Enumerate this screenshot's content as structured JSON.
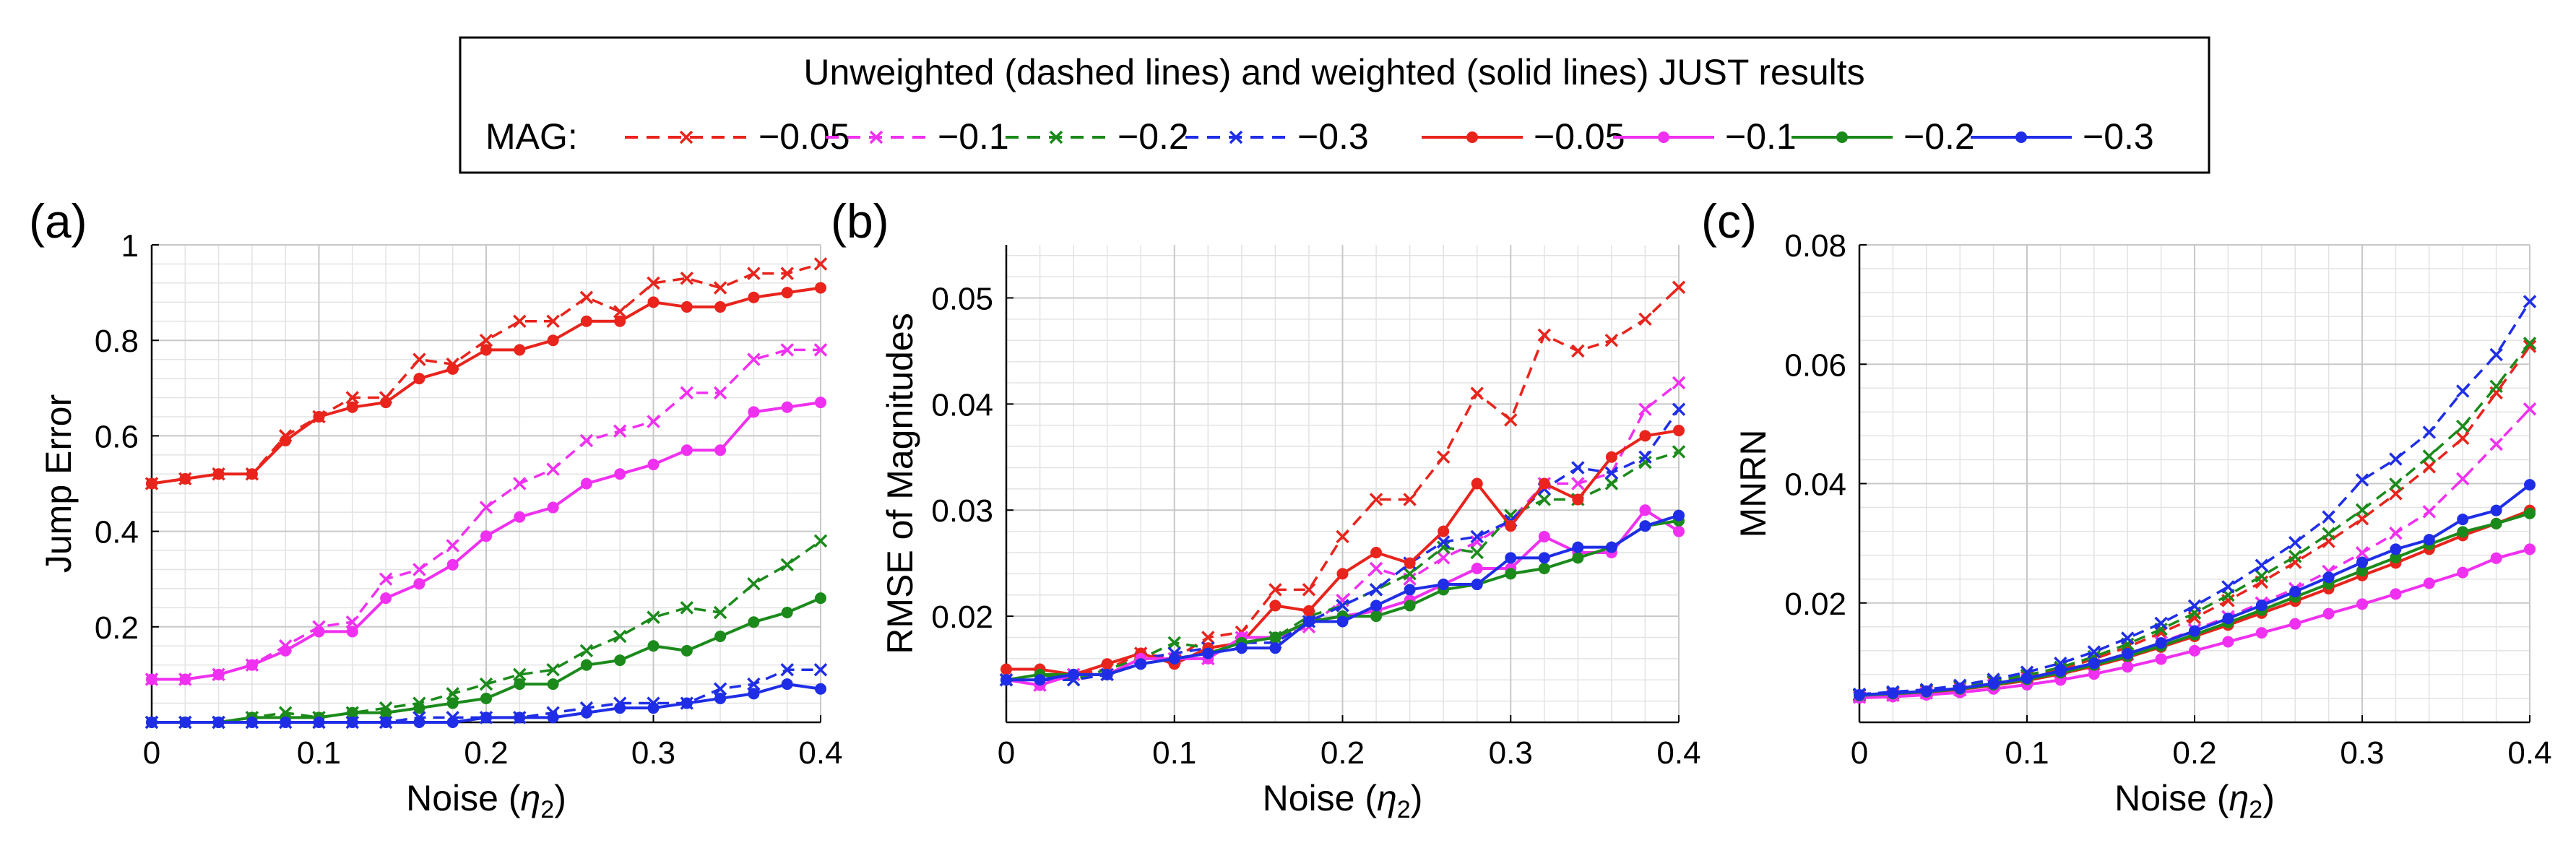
{
  "legend": {
    "title": "Unweighted (dashed lines) and weighted (solid lines) JUST results",
    "group_label": "MAG:",
    "entries": [
      {
        "label": "−0.05",
        "color": "#e8241c",
        "style": "dashed",
        "marker": "x"
      },
      {
        "label": "−0.1",
        "color": "#f030f0",
        "style": "dashed",
        "marker": "x"
      },
      {
        "label": "−0.2",
        "color": "#1b8a1b",
        "style": "dashed",
        "marker": "x"
      },
      {
        "label": "−0.3",
        "color": "#1f2ee6",
        "style": "dashed",
        "marker": "x"
      },
      {
        "label": "−0.05",
        "color": "#e8241c",
        "style": "solid",
        "marker": "o"
      },
      {
        "label": "−0.1",
        "color": "#f030f0",
        "style": "solid",
        "marker": "o"
      },
      {
        "label": "−0.2",
        "color": "#1b8a1b",
        "style": "solid",
        "marker": "o"
      },
      {
        "label": "−0.3",
        "color": "#1f2ee6",
        "style": "solid",
        "marker": "o"
      }
    ]
  },
  "chart_data": [
    {
      "panel": "(a)",
      "type": "line",
      "xlabel_pre": "Noise (",
      "xlabel_sym": "η",
      "xlabel_sub": "2",
      "xlabel_post": ")",
      "ylabel": "Jump Error",
      "xlim": [
        0,
        0.4
      ],
      "ylim": [
        0,
        1
      ],
      "xticks": [
        0,
        0.1,
        0.2,
        0.3,
        0.4
      ],
      "xtick_labels": [
        "0",
        "0.1",
        "0.2",
        "0.3",
        "0.4"
      ],
      "yticks": [
        0.2,
        0.4,
        0.6,
        0.8,
        1
      ],
      "ytick_labels": [
        "0.2",
        "0.4",
        "0.6",
        "0.8",
        "1"
      ],
      "grid": true,
      "x": [
        0,
        0.02,
        0.04,
        0.06,
        0.08,
        0.1,
        0.12,
        0.14,
        0.16,
        0.18,
        0.2,
        0.22,
        0.24,
        0.26,
        0.28,
        0.3,
        0.32,
        0.34,
        0.36,
        0.38,
        0.4
      ],
      "series": [
        {
          "mag": "-0.05",
          "weighted": false,
          "values": [
            0.5,
            0.51,
            0.52,
            0.52,
            0.6,
            0.64,
            0.68,
            0.68,
            0.76,
            0.75,
            0.8,
            0.84,
            0.84,
            0.89,
            0.86,
            0.92,
            0.93,
            0.91,
            0.94,
            0.94,
            0.96
          ]
        },
        {
          "mag": "-0.1",
          "weighted": false,
          "values": [
            0.09,
            0.09,
            0.1,
            0.12,
            0.16,
            0.2,
            0.21,
            0.3,
            0.32,
            0.37,
            0.45,
            0.5,
            0.53,
            0.59,
            0.61,
            0.63,
            0.69,
            0.69,
            0.76,
            0.78,
            0.78
          ]
        },
        {
          "mag": "-0.2",
          "weighted": false,
          "values": [
            0.0,
            0.0,
            0.0,
            0.01,
            0.02,
            0.01,
            0.02,
            0.03,
            0.04,
            0.06,
            0.08,
            0.1,
            0.11,
            0.15,
            0.18,
            0.22,
            0.24,
            0.23,
            0.29,
            0.33,
            0.38
          ]
        },
        {
          "mag": "-0.3",
          "weighted": false,
          "values": [
            0.0,
            0.0,
            0.0,
            0.0,
            0.0,
            0.0,
            0.0,
            0.0,
            0.01,
            0.01,
            0.01,
            0.01,
            0.02,
            0.03,
            0.04,
            0.04,
            0.04,
            0.07,
            0.08,
            0.11,
            0.11
          ]
        },
        {
          "mag": "-0.05",
          "weighted": true,
          "values": [
            0.5,
            0.51,
            0.52,
            0.52,
            0.59,
            0.64,
            0.66,
            0.67,
            0.72,
            0.74,
            0.78,
            0.78,
            0.8,
            0.84,
            0.84,
            0.88,
            0.87,
            0.87,
            0.89,
            0.9,
            0.91
          ]
        },
        {
          "mag": "-0.1",
          "weighted": true,
          "values": [
            0.09,
            0.09,
            0.1,
            0.12,
            0.15,
            0.19,
            0.19,
            0.26,
            0.29,
            0.33,
            0.39,
            0.43,
            0.45,
            0.5,
            0.52,
            0.54,
            0.57,
            0.57,
            0.65,
            0.66,
            0.67
          ]
        },
        {
          "mag": "-0.2",
          "weighted": true,
          "values": [
            0.0,
            0.0,
            0.0,
            0.01,
            0.01,
            0.01,
            0.02,
            0.02,
            0.03,
            0.04,
            0.05,
            0.08,
            0.08,
            0.12,
            0.13,
            0.16,
            0.15,
            0.18,
            0.21,
            0.23,
            0.26
          ]
        },
        {
          "mag": "-0.3",
          "weighted": true,
          "values": [
            0.0,
            0.0,
            0.0,
            0.0,
            0.0,
            0.0,
            0.0,
            0.0,
            0.0,
            0.0,
            0.01,
            0.01,
            0.01,
            0.02,
            0.03,
            0.03,
            0.04,
            0.05,
            0.06,
            0.08,
            0.07
          ]
        }
      ]
    },
    {
      "panel": "(b)",
      "type": "line",
      "xlabel_pre": "Noise (",
      "xlabel_sym": "η",
      "xlabel_sub": "2",
      "xlabel_post": ")",
      "ylabel": "RMSE of Magnitudes",
      "xlim": [
        0,
        0.4
      ],
      "ylim": [
        0.01,
        0.055
      ],
      "xticks": [
        0,
        0.1,
        0.2,
        0.3,
        0.4
      ],
      "xtick_labels": [
        "0",
        "0.1",
        "0.2",
        "0.3",
        "0.4"
      ],
      "yticks": [
        0.02,
        0.03,
        0.04,
        0.05
      ],
      "ytick_labels": [
        "0.02",
        "0.03",
        "0.04",
        "0.05"
      ],
      "grid": true,
      "x": [
        0,
        0.02,
        0.04,
        0.06,
        0.08,
        0.1,
        0.12,
        0.14,
        0.16,
        0.18,
        0.2,
        0.22,
        0.24,
        0.26,
        0.28,
        0.3,
        0.32,
        0.34,
        0.36,
        0.38,
        0.4
      ],
      "series": [
        {
          "mag": "-0.05",
          "weighted": false,
          "values": [
            0.014,
            0.0145,
            0.0145,
            0.015,
            0.0165,
            0.016,
            0.018,
            0.0185,
            0.0225,
            0.0225,
            0.0275,
            0.031,
            0.031,
            0.035,
            0.041,
            0.0385,
            0.0465,
            0.045,
            0.046,
            0.048,
            0.051
          ]
        },
        {
          "mag": "-0.1",
          "weighted": false,
          "values": [
            0.014,
            0.0135,
            0.0145,
            0.0145,
            0.016,
            0.016,
            0.016,
            0.018,
            0.018,
            0.019,
            0.0215,
            0.0245,
            0.0235,
            0.0255,
            0.027,
            0.029,
            0.0325,
            0.0325,
            0.0335,
            0.0395,
            0.042
          ]
        },
        {
          "mag": "-0.2",
          "weighted": false,
          "values": [
            0.014,
            0.0145,
            0.014,
            0.015,
            0.016,
            0.0175,
            0.017,
            0.0175,
            0.018,
            0.02,
            0.021,
            0.0225,
            0.024,
            0.0265,
            0.026,
            0.0295,
            0.031,
            0.031,
            0.0325,
            0.0345,
            0.0355
          ]
        },
        {
          "mag": "-0.3",
          "weighted": false,
          "values": [
            0.014,
            0.014,
            0.014,
            0.0145,
            0.016,
            0.0165,
            0.017,
            0.0175,
            0.0175,
            0.0195,
            0.021,
            0.0225,
            0.025,
            0.027,
            0.0275,
            0.029,
            0.032,
            0.034,
            0.0335,
            0.035,
            0.0395
          ]
        },
        {
          "mag": "-0.05",
          "weighted": true,
          "values": [
            0.015,
            0.015,
            0.0145,
            0.0155,
            0.0165,
            0.0155,
            0.017,
            0.0175,
            0.021,
            0.0205,
            0.024,
            0.026,
            0.025,
            0.028,
            0.0325,
            0.0285,
            0.0325,
            0.031,
            0.035,
            0.037,
            0.0375
          ]
        },
        {
          "mag": "-0.1",
          "weighted": true,
          "values": [
            0.014,
            0.0135,
            0.0145,
            0.0145,
            0.016,
            0.016,
            0.016,
            0.018,
            0.018,
            0.0195,
            0.02,
            0.0205,
            0.0215,
            0.023,
            0.0245,
            0.0245,
            0.0275,
            0.026,
            0.026,
            0.03,
            0.028
          ]
        },
        {
          "mag": "-0.2",
          "weighted": true,
          "values": [
            0.014,
            0.0145,
            0.0145,
            0.0145,
            0.0155,
            0.016,
            0.0165,
            0.0175,
            0.018,
            0.0195,
            0.02,
            0.02,
            0.021,
            0.0225,
            0.023,
            0.024,
            0.0245,
            0.0255,
            0.0265,
            0.0285,
            0.029
          ]
        },
        {
          "mag": "-0.3",
          "weighted": true,
          "values": [
            0.014,
            0.014,
            0.0145,
            0.0145,
            0.0155,
            0.016,
            0.0165,
            0.017,
            0.017,
            0.0195,
            0.0195,
            0.021,
            0.0225,
            0.023,
            0.023,
            0.0255,
            0.0255,
            0.0265,
            0.0265,
            0.0285,
            0.0295
          ]
        }
      ]
    },
    {
      "panel": "(c)",
      "type": "line",
      "xlabel_pre": "Noise (",
      "xlabel_sym": "η",
      "xlabel_sub": "2",
      "xlabel_post": ")",
      "ylabel": "MNRN",
      "xlim": [
        0,
        0.4
      ],
      "ylim": [
        0,
        0.08
      ],
      "xticks": [
        0,
        0.1,
        0.2,
        0.3,
        0.4
      ],
      "xtick_labels": [
        "0",
        "0.1",
        "0.2",
        "0.3",
        "0.4"
      ],
      "yticks": [
        0.02,
        0.04,
        0.06,
        0.08
      ],
      "ytick_labels": [
        "0.02",
        "0.04",
        "0.06",
        "0.08"
      ],
      "grid": true,
      "x": [
        0,
        0.02,
        0.04,
        0.06,
        0.08,
        0.1,
        0.12,
        0.14,
        0.16,
        0.18,
        0.2,
        0.22,
        0.24,
        0.26,
        0.28,
        0.3,
        0.32,
        0.34,
        0.36,
        0.38,
        0.4
      ],
      "series": [
        {
          "mag": "-0.05",
          "weighted": false,
          "values": [
            0.0045,
            0.0048,
            0.0052,
            0.0058,
            0.0067,
            0.0076,
            0.0089,
            0.0106,
            0.0126,
            0.015,
            0.0175,
            0.0204,
            0.0235,
            0.0268,
            0.0303,
            0.0341,
            0.0383,
            0.0428,
            0.0476,
            0.0552,
            0.063
          ]
        },
        {
          "mag": "-0.1",
          "weighted": false,
          "values": [
            0.0042,
            0.0045,
            0.0049,
            0.0054,
            0.0062,
            0.0071,
            0.0083,
            0.0097,
            0.0114,
            0.0134,
            0.0155,
            0.0177,
            0.02,
            0.0224,
            0.0253,
            0.0284,
            0.0317,
            0.0353,
            0.0408,
            0.0466,
            0.0525
          ]
        },
        {
          "mag": "-0.2",
          "weighted": false,
          "values": [
            0.0046,
            0.005,
            0.0054,
            0.006,
            0.0069,
            0.0079,
            0.0092,
            0.011,
            0.0131,
            0.0156,
            0.0183,
            0.0213,
            0.0245,
            0.0278,
            0.0316,
            0.0356,
            0.0399,
            0.0446,
            0.0496,
            0.0563,
            0.0635
          ]
        },
        {
          "mag": "-0.3",
          "weighted": false,
          "values": [
            0.0047,
            0.0051,
            0.0055,
            0.0062,
            0.0072,
            0.0084,
            0.0099,
            0.0118,
            0.0141,
            0.0166,
            0.0195,
            0.0227,
            0.0263,
            0.0301,
            0.0344,
            0.0406,
            0.0441,
            0.0486,
            0.0555,
            0.0616,
            0.0705
          ]
        },
        {
          "mag": "-0.05",
          "weighted": true,
          "values": [
            0.0044,
            0.0047,
            0.005,
            0.0055,
            0.0062,
            0.007,
            0.0081,
            0.0094,
            0.0109,
            0.0126,
            0.0144,
            0.0163,
            0.0183,
            0.0203,
            0.0224,
            0.0246,
            0.0267,
            0.029,
            0.0313,
            0.0333,
            0.0355
          ]
        },
        {
          "mag": "-0.1",
          "weighted": true,
          "values": [
            0.0041,
            0.0043,
            0.0046,
            0.005,
            0.0056,
            0.0063,
            0.0071,
            0.0081,
            0.0093,
            0.0106,
            0.012,
            0.0135,
            0.015,
            0.0165,
            0.0182,
            0.0198,
            0.0215,
            0.0233,
            0.0251,
            0.0275,
            0.029
          ]
        },
        {
          "mag": "-0.2",
          "weighted": true,
          "values": [
            0.0045,
            0.0048,
            0.0051,
            0.0056,
            0.0063,
            0.0072,
            0.0083,
            0.0096,
            0.0111,
            0.0128,
            0.0147,
            0.0167,
            0.0188,
            0.021,
            0.0232,
            0.0254,
            0.0276,
            0.0298,
            0.0319,
            0.0333,
            0.035
          ]
        },
        {
          "mag": "-0.3",
          "weighted": true,
          "values": [
            0.0046,
            0.0049,
            0.0052,
            0.0057,
            0.0065,
            0.0074,
            0.0086,
            0.0099,
            0.0115,
            0.0133,
            0.0153,
            0.0174,
            0.0196,
            0.0219,
            0.0243,
            0.0268,
            0.029,
            0.0306,
            0.034,
            0.0355,
            0.0398
          ]
        }
      ]
    }
  ]
}
